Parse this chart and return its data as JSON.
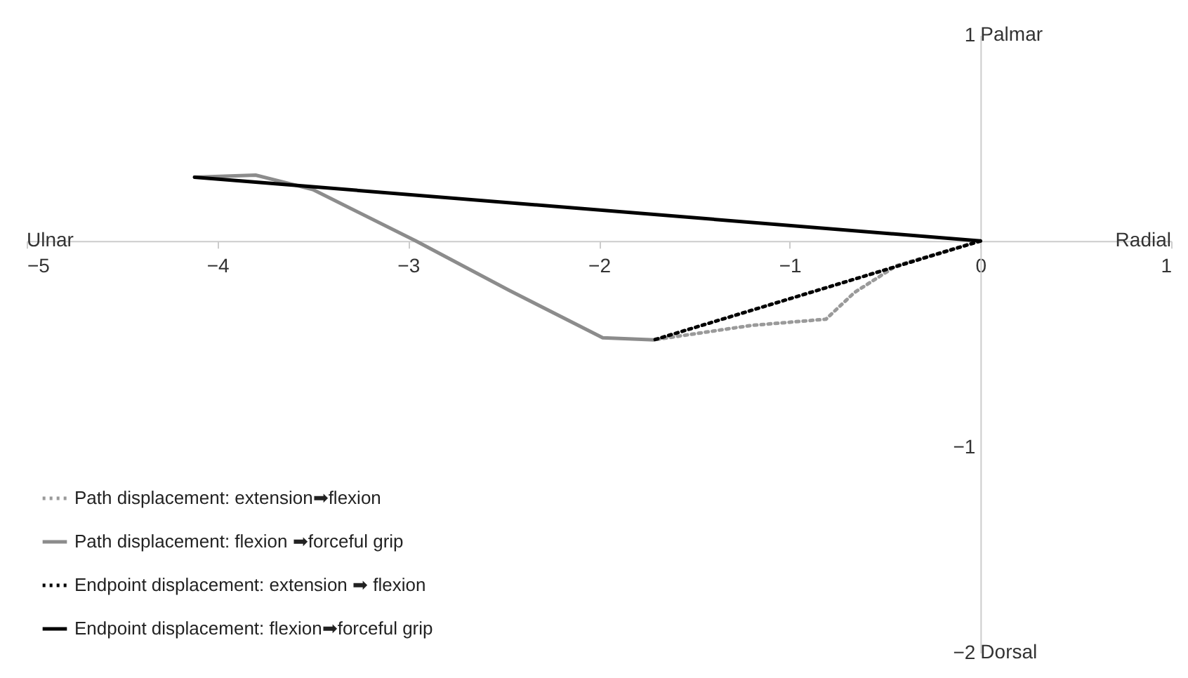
{
  "chart_data": {
    "type": "line",
    "xlim": [
      -5,
      1
    ],
    "ylim": [
      -2,
      1
    ],
    "xticks": [
      -5,
      -4,
      -3,
      -2,
      -1,
      0,
      1
    ],
    "yticks": [
      -2,
      -1,
      1
    ],
    "grid": false,
    "legend": "bottom left",
    "marker": "none",
    "annotations": [
      "Ulnar",
      "Radial",
      "Palmar",
      "Dorsal"
    ],
    "series": [
      {
        "name": "Path displacement: extension➡flexion",
        "color": "#9a9a9a",
        "line_style": "dotted",
        "x": [
          0,
          -0.44,
          -0.66,
          -0.81,
          -1.2,
          -1.71
        ],
        "values": [
          0,
          -0.12,
          -0.25,
          -0.38,
          -0.41,
          -0.48
        ]
      },
      {
        "name": "Path displacement: flexion ➡forceful grip",
        "color": "#8c8c8c",
        "line_style": "solid",
        "x": [
          -1.71,
          -1.98,
          -2.47,
          -2.96,
          -3.5,
          -3.8,
          -4.12
        ],
        "values": [
          -0.48,
          -0.47,
          -0.24,
          0,
          0.25,
          0.32,
          0.31
        ]
      },
      {
        "name": "Endpoint displacement: extension ➡ flexion",
        "color": "#000000",
        "line_style": "dotted",
        "x": [
          0,
          -1.71
        ],
        "values": [
          0,
          -0.48
        ]
      },
      {
        "name": "Endpoint displacement: flexion➡forceful grip",
        "color": "#000000",
        "line_style": "solid",
        "x": [
          0,
          -4.12
        ],
        "values": [
          0,
          0.31
        ]
      }
    ]
  }
}
